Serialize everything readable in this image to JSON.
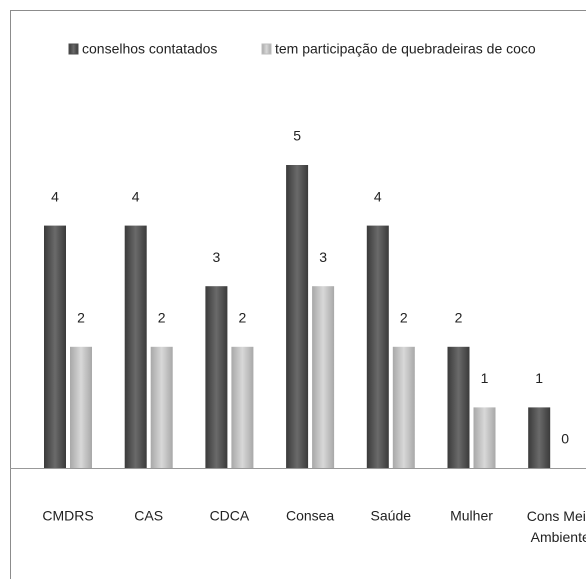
{
  "chart_data": {
    "type": "bar",
    "categories": [
      "CMDRS",
      "CAS",
      "CDCA",
      "Consea",
      "Saúde",
      "Mulher",
      "Cons Meio Ambiente"
    ],
    "series": [
      {
        "name": "conselhos contatados",
        "color": "#4d4d4d",
        "values": [
          4,
          4,
          3,
          5,
          4,
          2,
          1
        ]
      },
      {
        "name": "tem participação de quebradeiras de coco",
        "color": "#bdbdbd",
        "values": [
          2,
          2,
          2,
          3,
          2,
          1,
          0
        ]
      }
    ],
    "ylim": [
      0,
      5
    ],
    "legend": "top"
  }
}
